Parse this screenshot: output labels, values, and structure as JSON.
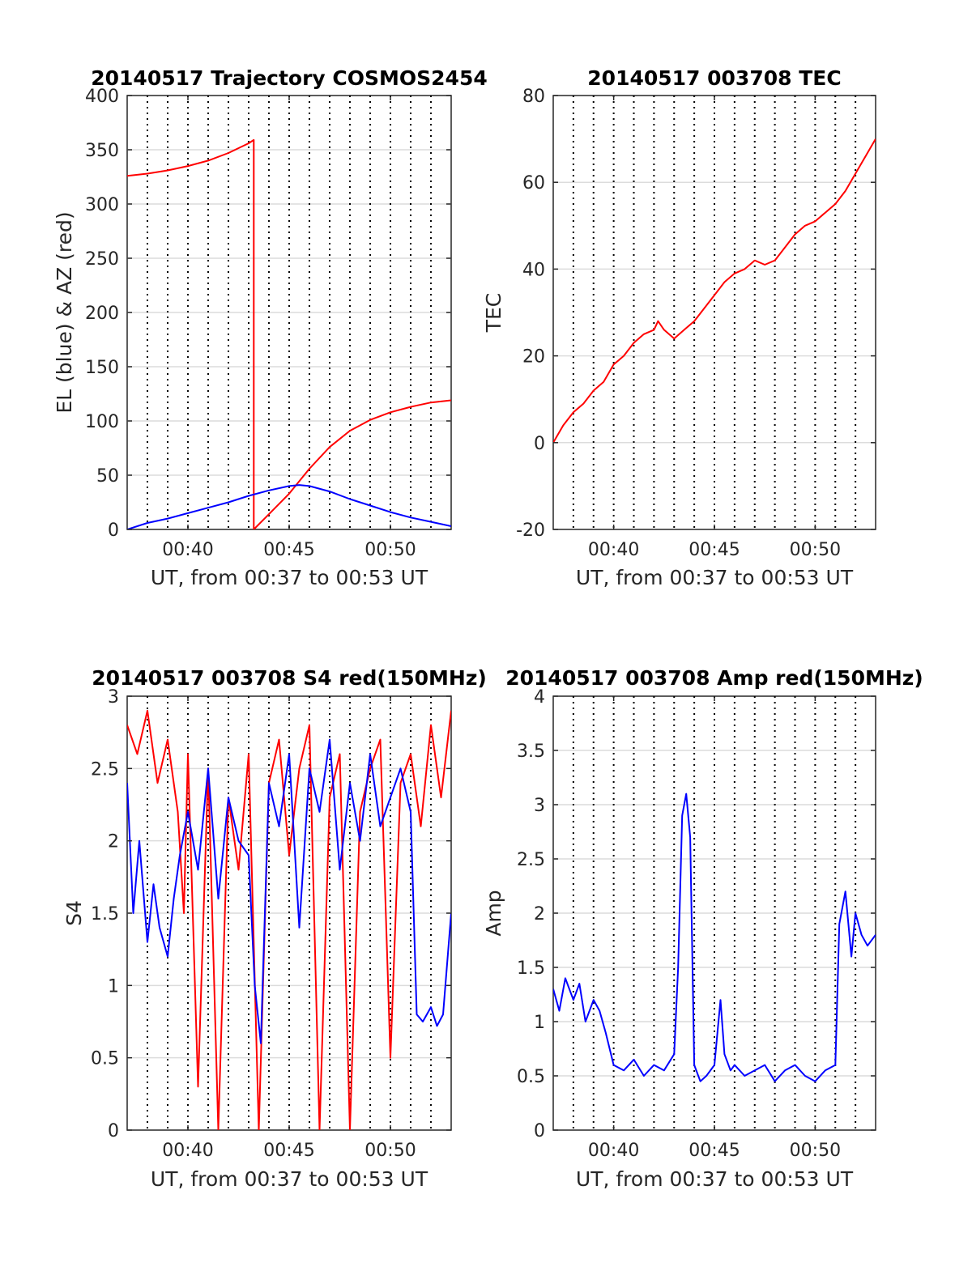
{
  "chart_data": [
    {
      "id": "p1",
      "type": "line",
      "title": "20140517 Trajectory COSMOS2454",
      "xlabel": "UT, from 00:37 to 00:53 UT",
      "ylabel": "EL (blue) & AZ (red)",
      "xlim": [
        37,
        53
      ],
      "ylim": [
        0,
        400
      ],
      "xticks": [
        40,
        45,
        50
      ],
      "xticklabels": [
        "00:40",
        "00:45",
        "00:50"
      ],
      "yticks": [
        0,
        50,
        100,
        150,
        200,
        250,
        300,
        350,
        400
      ],
      "yticklabels": [
        "0",
        "50",
        "100",
        "150",
        "200",
        "250",
        "300",
        "350",
        "400"
      ],
      "vgrid_minutes": [
        38,
        39,
        40,
        41,
        42,
        43,
        44,
        45,
        46,
        47,
        48,
        49,
        50,
        51,
        52
      ],
      "series": [
        {
          "color": "#ff0000",
          "x": [
            37,
            38,
            39,
            40,
            41,
            42,
            43,
            43.25,
            43.25,
            44,
            45,
            46,
            47,
            48,
            49,
            50,
            51,
            52,
            53
          ],
          "y": [
            326,
            328,
            331,
            335,
            340,
            347,
            356,
            359,
            0,
            14,
            33,
            56,
            76,
            91,
            101,
            108,
            113,
            117,
            119
          ]
        },
        {
          "color": "#0000ff",
          "x": [
            37,
            38,
            39,
            40,
            41,
            42,
            43,
            44,
            45,
            45.5,
            46,
            47,
            48,
            49,
            50,
            51,
            52,
            53
          ],
          "y": [
            0,
            6,
            10,
            15,
            20,
            25,
            31,
            36,
            40,
            41,
            40,
            35,
            28,
            22,
            16,
            11,
            7,
            3
          ]
        }
      ]
    },
    {
      "id": "p2",
      "type": "line",
      "title": "20140517 003708 TEC",
      "xlabel": "UT, from 00:37 to 00:53 UT",
      "ylabel": "TEC",
      "xlim": [
        37,
        53
      ],
      "ylim": [
        -20,
        80
      ],
      "xticks": [
        40,
        45,
        50
      ],
      "xticklabels": [
        "00:40",
        "00:45",
        "00:50"
      ],
      "yticks": [
        -20,
        0,
        20,
        40,
        60,
        80
      ],
      "yticklabels": [
        "-20",
        "0",
        "20",
        "40",
        "60",
        "80"
      ],
      "vgrid_minutes": [
        38,
        39,
        40,
        41,
        42,
        43,
        44,
        45,
        46,
        47,
        48,
        49,
        50,
        51,
        52
      ],
      "series": [
        {
          "color": "#ff0000",
          "x": [
            37,
            37.5,
            38,
            38.5,
            39,
            39.5,
            40,
            40.5,
            41,
            41.5,
            42,
            42.2,
            42.5,
            43,
            43.5,
            44,
            44.5,
            45,
            45.5,
            46,
            46.5,
            47,
            47.5,
            48,
            48.5,
            49,
            49.5,
            50,
            50.5,
            51,
            51.5,
            52,
            52.5,
            53
          ],
          "y": [
            0,
            4,
            7,
            9,
            12,
            14,
            18,
            20,
            23,
            25,
            26,
            28,
            26,
            24,
            26,
            28,
            31,
            34,
            37,
            39,
            40,
            42,
            41,
            42,
            45,
            48,
            50,
            51,
            53,
            55,
            58,
            62,
            66,
            70
          ]
        }
      ]
    },
    {
      "id": "p3",
      "type": "line",
      "title": "20140517 003708 S4 red(150MHz)",
      "xlabel": "UT, from 00:37 to 00:53 UT",
      "ylabel": "S4",
      "xlim": [
        37,
        53
      ],
      "ylim": [
        0,
        3
      ],
      "xticks": [
        40,
        45,
        50
      ],
      "xticklabels": [
        "00:40",
        "00:45",
        "00:50"
      ],
      "yticks": [
        0,
        0.5,
        1,
        1.5,
        2,
        2.5,
        3
      ],
      "yticklabels": [
        "0",
        "0.5",
        "1",
        "1.5",
        "2",
        "2.5",
        "3"
      ],
      "vgrid_minutes": [
        38,
        39,
        40,
        41,
        42,
        43,
        44,
        45,
        46,
        47,
        48,
        49,
        50,
        51,
        52
      ],
      "series": [
        {
          "color": "#ff0000",
          "x": [
            37,
            37.5,
            38,
            38.5,
            39,
            39.5,
            39.8,
            40,
            40.5,
            41,
            41.5,
            42,
            42.5,
            43,
            43.5,
            44,
            44.5,
            45,
            45.5,
            46,
            46.5,
            47,
            47.5,
            48,
            48.5,
            49,
            49.5,
            50,
            50.5,
            51,
            51.5,
            52,
            52.5,
            53
          ],
          "y": [
            2.8,
            2.6,
            2.9,
            2.4,
            2.7,
            2.2,
            1.5,
            2.6,
            0.3,
            2.5,
            0,
            2.3,
            1.8,
            2.6,
            0,
            2.4,
            2.7,
            1.9,
            2.5,
            2.8,
            0,
            2.3,
            2.6,
            0,
            2.2,
            2.5,
            2.7,
            0.5,
            2.4,
            2.6,
            2.1,
            2.8,
            2.3,
            2.9
          ]
        },
        {
          "color": "#0000ff",
          "x": [
            37,
            37.3,
            37.6,
            38,
            38.3,
            38.6,
            39,
            39.3,
            39.6,
            40,
            40.5,
            41,
            41.5,
            42,
            42.5,
            43,
            43.3,
            43.6,
            44,
            44.5,
            45,
            45.5,
            46,
            46.5,
            47,
            47.5,
            48,
            48.5,
            49,
            49.5,
            50,
            50.5,
            51,
            51.3,
            51.6,
            52,
            52.3,
            52.6,
            53
          ],
          "y": [
            2.4,
            1.5,
            2.0,
            1.3,
            1.7,
            1.4,
            1.2,
            1.6,
            1.9,
            2.2,
            1.8,
            2.5,
            1.6,
            2.3,
            2.0,
            1.9,
            1.0,
            0.6,
            2.4,
            2.1,
            2.6,
            1.4,
            2.5,
            2.2,
            2.7,
            1.8,
            2.4,
            2.0,
            2.6,
            2.1,
            2.3,
            2.5,
            2.2,
            0.8,
            0.75,
            0.85,
            0.72,
            0.8,
            1.5
          ]
        }
      ]
    },
    {
      "id": "p4",
      "type": "line",
      "title": "20140517 003708 Amp red(150MHz)",
      "xlabel": "UT, from 00:37 to 00:53 UT",
      "ylabel": "Amp",
      "xlim": [
        37,
        53
      ],
      "ylim": [
        0,
        4
      ],
      "xticks": [
        40,
        45,
        50
      ],
      "xticklabels": [
        "00:40",
        "00:45",
        "00:50"
      ],
      "yticks": [
        0,
        0.5,
        1,
        1.5,
        2,
        2.5,
        3,
        3.5,
        4
      ],
      "yticklabels": [
        "0",
        "0.5",
        "1",
        "1.5",
        "2",
        "2.5",
        "3",
        "3.5",
        "4"
      ],
      "vgrid_minutes": [
        38,
        39,
        40,
        41,
        42,
        43,
        44,
        45,
        46,
        47,
        48,
        49,
        50,
        51,
        52
      ],
      "series": [
        {
          "color": "#0000ff",
          "x": [
            37,
            37.3,
            37.6,
            38,
            38.3,
            38.6,
            39,
            39.3,
            39.6,
            40,
            40.5,
            41,
            41.5,
            42,
            42.5,
            43,
            43.2,
            43.4,
            43.6,
            43.8,
            44,
            44.3,
            44.6,
            45,
            45.3,
            45.5,
            45.8,
            46,
            46.5,
            47,
            47.5,
            48,
            48.5,
            49,
            49.5,
            50,
            50.5,
            51,
            51.2,
            51.5,
            51.8,
            52,
            52.3,
            52.6,
            53
          ],
          "y": [
            1.3,
            1.1,
            1.4,
            1.2,
            1.35,
            1.0,
            1.2,
            1.1,
            0.9,
            0.6,
            0.55,
            0.65,
            0.5,
            0.6,
            0.55,
            0.7,
            1.5,
            2.9,
            3.1,
            2.7,
            0.6,
            0.45,
            0.5,
            0.6,
            1.2,
            0.7,
            0.55,
            0.6,
            0.5,
            0.55,
            0.6,
            0.45,
            0.55,
            0.6,
            0.5,
            0.45,
            0.55,
            0.6,
            1.9,
            2.2,
            1.6,
            2.0,
            1.8,
            1.7,
            1.8
          ]
        }
      ]
    }
  ]
}
